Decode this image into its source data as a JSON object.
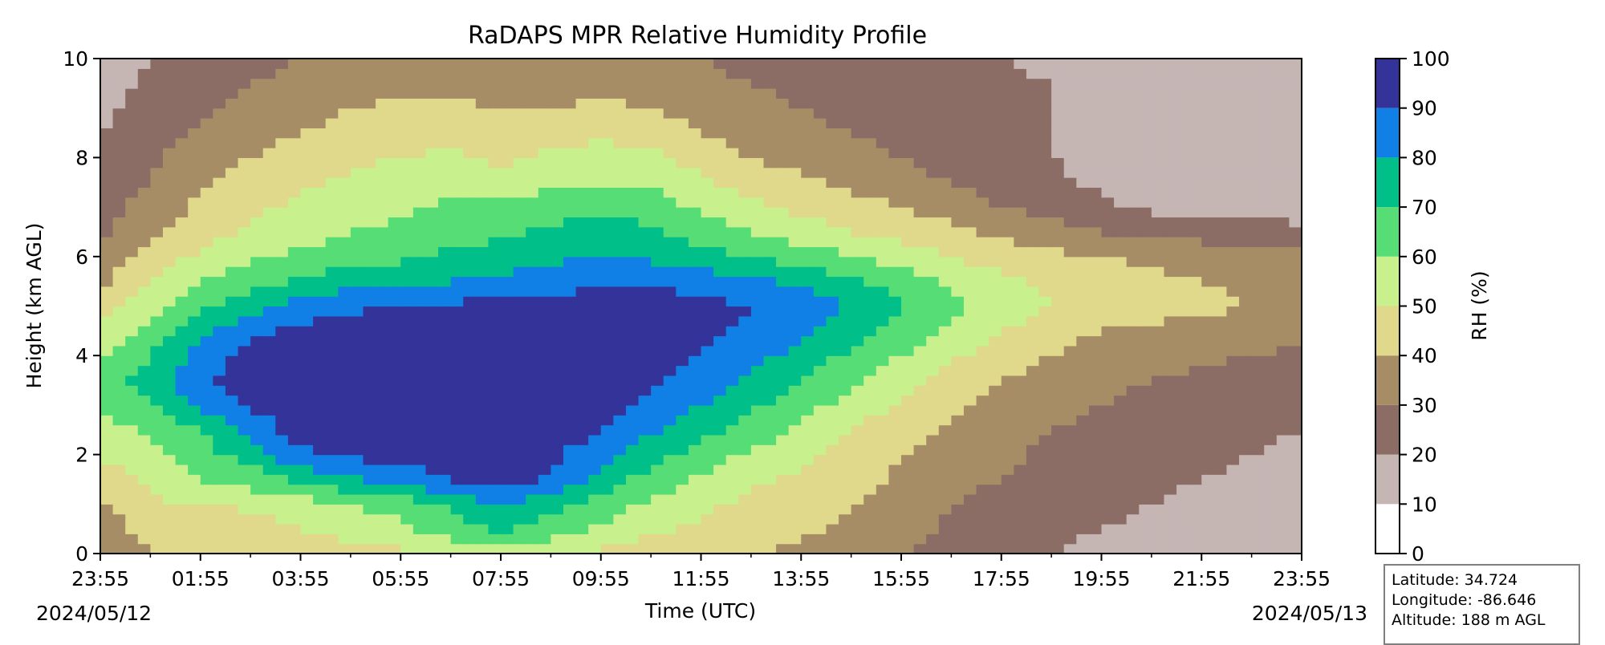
{
  "chart_data": {
    "type": "heatmap",
    "title": "RaDAPS MPR Relative Humidity Profile",
    "xlabel": "Time (UTC)",
    "ylabel": "Height (km AGL)",
    "x_ticks": [
      "23:55",
      "01:55",
      "03:55",
      "05:55",
      "07:55",
      "09:55",
      "11:55",
      "13:55",
      "15:55",
      "17:55",
      "19:55",
      "21:55",
      "23:55"
    ],
    "x_range_hours": [
      0,
      24
    ],
    "start_date": "2024/05/12",
    "end_date": "2024/05/13",
    "ylim": [
      0,
      10
    ],
    "y_ticks": [
      "0",
      "2",
      "4",
      "6",
      "8",
      "10"
    ],
    "colorbar": {
      "label": "RH (%)",
      "levels": [
        0,
        10,
        20,
        30,
        40,
        50,
        60,
        70,
        80,
        90,
        100
      ],
      "tick_labels": [
        "0",
        "10",
        "20",
        "30",
        "40",
        "50",
        "60",
        "70",
        "80",
        "90",
        "100"
      ],
      "colors": [
        "#ffffff",
        "#c5b5b3",
        "#8b6d66",
        "#a78d66",
        "#e0d88a",
        "#c8f08c",
        "#56dd76",
        "#00bf88",
        "#1180e6",
        "#333399"
      ]
    },
    "profile_hours": [
      0,
      1,
      2,
      3,
      4,
      5,
      6,
      7,
      8,
      9,
      10,
      11,
      12,
      13,
      14,
      15,
      16,
      17,
      18,
      19,
      20,
      21,
      22,
      23,
      24
    ],
    "profile_heights_km": [
      0,
      0.5,
      1,
      1.5,
      2,
      2.5,
      3,
      3.5,
      4,
      4.5,
      5,
      5.5,
      6,
      6.5,
      7,
      7.5,
      8,
      8.5,
      9,
      9.5,
      10
    ],
    "rh_percent": [
      [
        32,
        38,
        45,
        42,
        40,
        44,
        48,
        52,
        55,
        52,
        48,
        45,
        42,
        40,
        38,
        35,
        30,
        26,
        22,
        20,
        18,
        16,
        14,
        12,
        10
      ],
      [
        35,
        45,
        46,
        44,
        50,
        55,
        58,
        65,
        72,
        65,
        58,
        52,
        48,
        45,
        42,
        38,
        34,
        28,
        24,
        22,
        20,
        18,
        16,
        14,
        12
      ],
      [
        38,
        48,
        50,
        52,
        55,
        60,
        64,
        72,
        82,
        74,
        65,
        58,
        52,
        48,
        45,
        40,
        35,
        30,
        26,
        24,
        22,
        20,
        18,
        16,
        14
      ],
      [
        45,
        52,
        60,
        65,
        72,
        78,
        84,
        90,
        96,
        88,
        76,
        66,
        58,
        52,
        48,
        44,
        38,
        34,
        30,
        26,
        24,
        22,
        20,
        18,
        16
      ],
      [
        52,
        56,
        66,
        74,
        88,
        92,
        95,
        96,
        97,
        92,
        84,
        74,
        65,
        58,
        52,
        46,
        40,
        36,
        32,
        28,
        26,
        24,
        22,
        20,
        18
      ],
      [
        56,
        62,
        70,
        82,
        95,
        96,
        97,
        97,
        98,
        96,
        90,
        82,
        74,
        66,
        58,
        50,
        44,
        38,
        34,
        30,
        28,
        26,
        24,
        22,
        20
      ],
      [
        62,
        68,
        82,
        92,
        96,
        97,
        97,
        98,
        98,
        97,
        94,
        88,
        80,
        72,
        64,
        56,
        48,
        42,
        36,
        32,
        30,
        28,
        26,
        24,
        22
      ],
      [
        66,
        75,
        88,
        95,
        97,
        97,
        98,
        98,
        98,
        98,
        96,
        92,
        86,
        78,
        70,
        62,
        54,
        46,
        40,
        35,
        32,
        30,
        28,
        26,
        24
      ],
      [
        58,
        70,
        84,
        93,
        96,
        97,
        98,
        98,
        98,
        98,
        97,
        95,
        90,
        84,
        76,
        68,
        60,
        52,
        45,
        40,
        36,
        34,
        32,
        30,
        28
      ],
      [
        52,
        64,
        78,
        88,
        93,
        95,
        96,
        97,
        97,
        98,
        97,
        96,
        93,
        88,
        82,
        74,
        66,
        58,
        50,
        44,
        40,
        38,
        36,
        34,
        32
      ],
      [
        45,
        56,
        68,
        76,
        84,
        88,
        90,
        92,
        93,
        95,
        95,
        95,
        93,
        90,
        86,
        80,
        72,
        64,
        56,
        50,
        46,
        44,
        42,
        40,
        38
      ],
      [
        38,
        50,
        60,
        66,
        72,
        76,
        78,
        80,
        82,
        85,
        88,
        88,
        86,
        82,
        78,
        72,
        65,
        58,
        52,
        48,
        44,
        42,
        40,
        38,
        36
      ],
      [
        32,
        44,
        52,
        58,
        62,
        66,
        68,
        72,
        74,
        78,
        80,
        78,
        74,
        70,
        66,
        60,
        55,
        50,
        46,
        42,
        40,
        38,
        36,
        34,
        32
      ],
      [
        28,
        38,
        46,
        52,
        56,
        60,
        62,
        66,
        68,
        72,
        74,
        72,
        66,
        60,
        55,
        50,
        46,
        42,
        38,
        34,
        30,
        28,
        26,
        24,
        22
      ],
      [
        26,
        34,
        42,
        48,
        52,
        56,
        58,
        62,
        62,
        66,
        68,
        66,
        58,
        52,
        48,
        44,
        40,
        36,
        30,
        26,
        22,
        18,
        16,
        16,
        16
      ],
      [
        24,
        30,
        38,
        44,
        48,
        52,
        54,
        56,
        54,
        58,
        60,
        58,
        52,
        46,
        42,
        38,
        34,
        30,
        26,
        22,
        18,
        15,
        14,
        14,
        15
      ],
      [
        22,
        28,
        35,
        40,
        44,
        48,
        50,
        52,
        48,
        52,
        54,
        52,
        46,
        40,
        36,
        32,
        30,
        26,
        22,
        20,
        17,
        15,
        14,
        14,
        15
      ],
      [
        20,
        26,
        32,
        36,
        40,
        44,
        46,
        48,
        44,
        46,
        48,
        46,
        40,
        36,
        32,
        30,
        28,
        25,
        22,
        20,
        18,
        17,
        16,
        16,
        17
      ],
      [
        18,
        24,
        28,
        32,
        36,
        40,
        42,
        42,
        40,
        40,
        42,
        40,
        36,
        32,
        30,
        28,
        26,
        24,
        22,
        20,
        19,
        18,
        17,
        17,
        18
      ],
      [
        16,
        22,
        26,
        30,
        32,
        34,
        36,
        36,
        36,
        35,
        36,
        34,
        32,
        30,
        28,
        26,
        25,
        23,
        21,
        20,
        19,
        18,
        18,
        18,
        18
      ],
      [
        14,
        20,
        24,
        28,
        30,
        32,
        33,
        33,
        34,
        32,
        32,
        31,
        30,
        28,
        26,
        24,
        23,
        22,
        20,
        19,
        18,
        18,
        18,
        18,
        18
      ]
    ]
  },
  "info": {
    "latitude": "Latitude: 34.724",
    "longitude": "Longitude: -86.646",
    "altitude": "Altitude: 188 m AGL"
  }
}
